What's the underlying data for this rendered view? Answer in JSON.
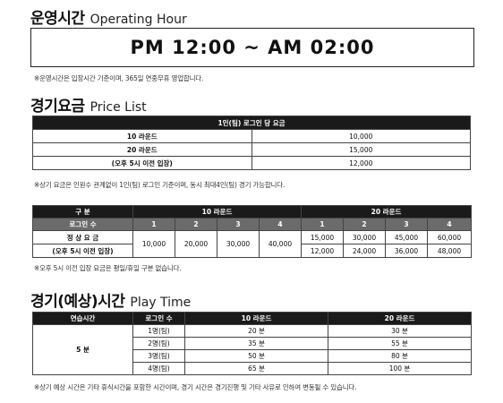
{
  "operating": {
    "title_ko": "운영시간",
    "title_en": "Operating Hour",
    "hours": "PM 12:00 ~ AM 02:00",
    "note": "※운영시간은 입장시간 기준이며, 365일 연중무휴 영업합니다."
  },
  "price": {
    "title_ko": "경기요금",
    "title_en": "Price List",
    "header": "1인(팀) 로그인 당 요금",
    "rows": [
      {
        "label": "10 라운드",
        "value": "10,000"
      },
      {
        "label": "20 라운드",
        "value": "15,000"
      },
      {
        "label": "(오후 5시 이전 입장)",
        "value": "12,000"
      }
    ],
    "note": "※상기 요금은 인원수 관계없이 1인(팀) 로그인 기준이며, 동시 최대4인(팀) 경기 가능합니다."
  },
  "rounds": {
    "col_div": "구 분",
    "col_10": "10 라운드",
    "col_20": "20 라운드",
    "login_label": "로그인 수",
    "logins": [
      "1",
      "2",
      "3",
      "4"
    ],
    "regular_label": "정 상 요 금",
    "before5_label": "(오후 5시 이전 입장)",
    "ten": [
      "10,000",
      "20,000",
      "30,000",
      "40,000"
    ],
    "twenty_regular": [
      "15,000",
      "30,000",
      "45,000",
      "60,000"
    ],
    "twenty_before5": [
      "12,000",
      "24,000",
      "36,000",
      "48,000"
    ],
    "note": "※오후 5시 이전 입장 요금은 평일/휴일 구분 없습니다."
  },
  "play": {
    "title_ko": "경기(예상)시간",
    "title_en": "Play Time",
    "headers": [
      "연습시간",
      "로그인 수",
      "10 라운드",
      "20 라운드"
    ],
    "practice": "5 분",
    "rows": [
      {
        "login": "1명(팀)",
        "r10": "20 분",
        "r20": "30 분"
      },
      {
        "login": "2명(팀)",
        "r10": "35 분",
        "r20": "55 분"
      },
      {
        "login": "3명(팀)",
        "r10": "50 분",
        "r20": "80 분"
      },
      {
        "login": "4명(팀)",
        "r10": "65 분",
        "r20": "100 분"
      }
    ],
    "note": "※상기 예상 시간은 기타 휴식시간을 포함한 시간이며, 경기 시간은 경기진행 및 기타 사유로 인하여 변동될 수 있습니다."
  }
}
